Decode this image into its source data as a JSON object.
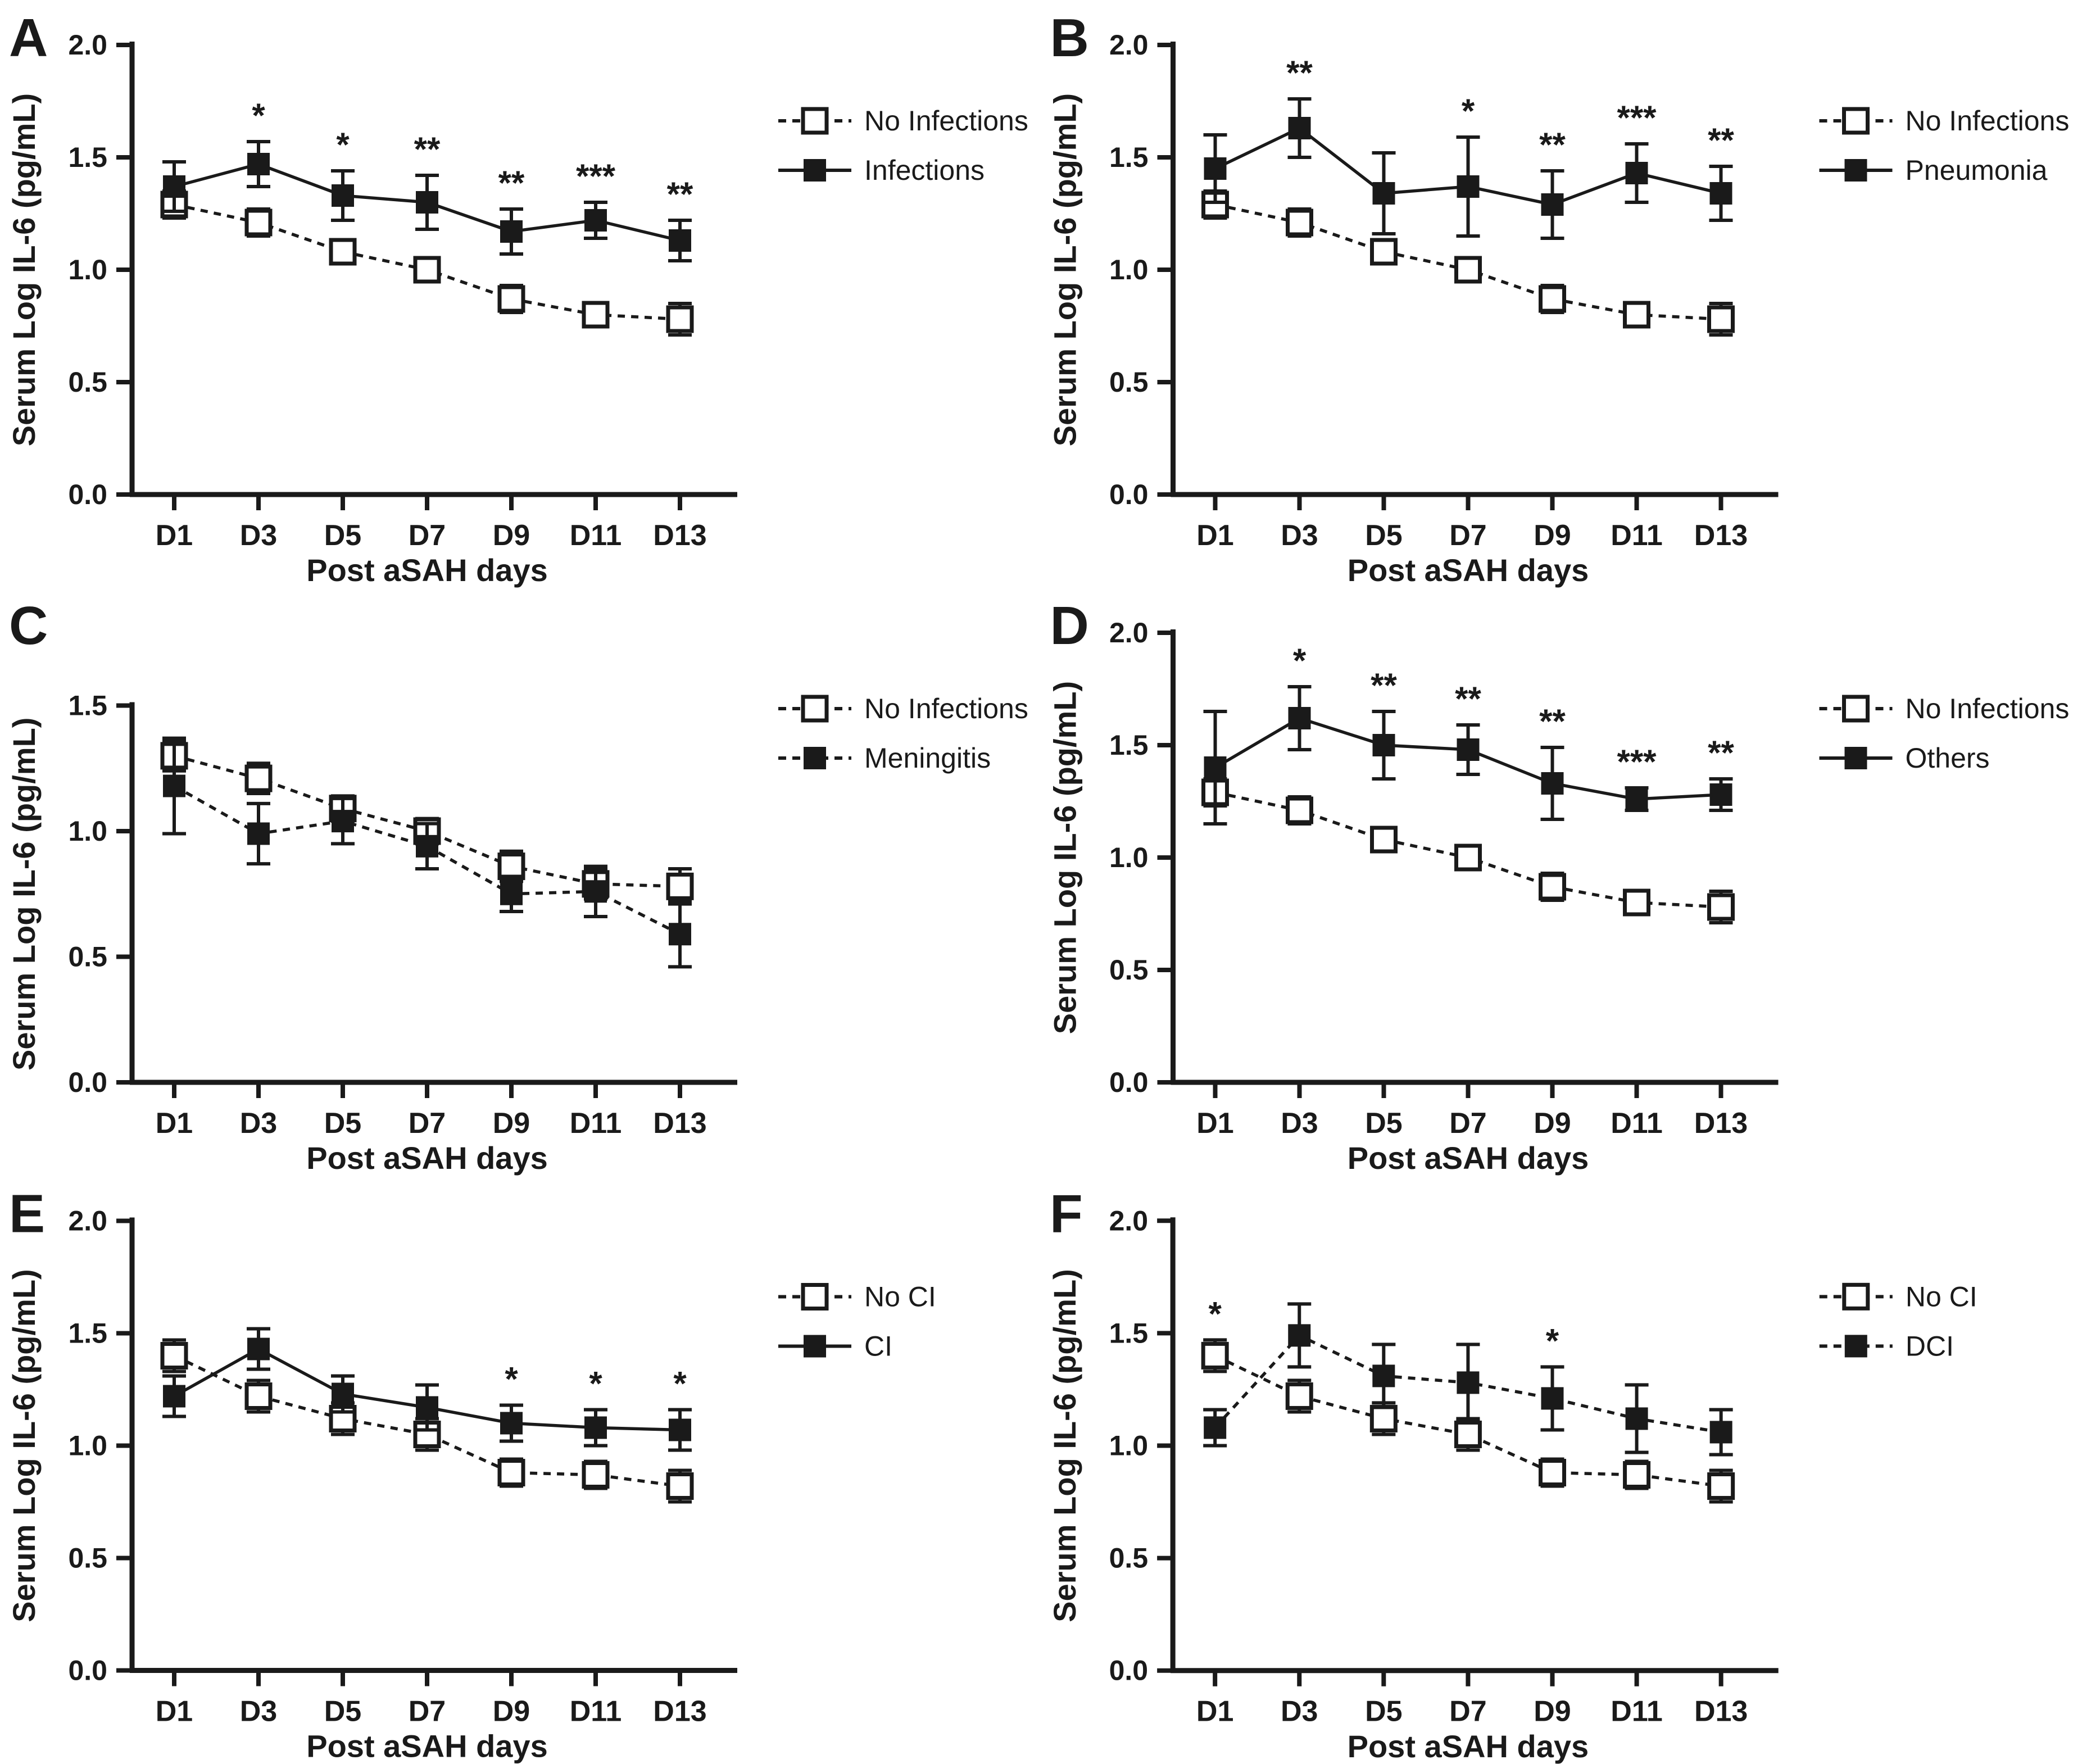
{
  "figure": {
    "background": "#ffffff",
    "ink_color": "#1a1a1a",
    "panel_letters": [
      "A",
      "B",
      "C",
      "D",
      "E",
      "F"
    ]
  },
  "chart_data": [
    {
      "panel": "A",
      "type": "line",
      "title": "",
      "xlabel": "Post aSAH days",
      "ylabel": "Serum Log IL-6 (pg/mL)",
      "categories": [
        "D1",
        "D3",
        "D5",
        "D7",
        "D9",
        "D11",
        "D13"
      ],
      "ylim": [
        0.0,
        2.0
      ],
      "yticks": [
        0.0,
        0.5,
        1.0,
        1.5,
        2.0
      ],
      "grid": false,
      "legend_position": "right",
      "series": [
        {
          "name": "No Infections",
          "marker": "open-square",
          "line": "dashed",
          "values": [
            1.29,
            1.21,
            1.08,
            1.0,
            0.87,
            0.8,
            0.78
          ],
          "errors": [
            0.06,
            0.06,
            0.05,
            0.05,
            0.06,
            0.05,
            0.07
          ]
        },
        {
          "name": "Infections",
          "marker": "filled-square",
          "line": "solid",
          "values": [
            1.37,
            1.47,
            1.33,
            1.3,
            1.17,
            1.22,
            1.13
          ],
          "errors": [
            0.11,
            0.1,
            0.11,
            0.12,
            0.1,
            0.08,
            0.09
          ]
        }
      ],
      "significance": [
        {
          "category": "D3",
          "series": "Infections",
          "label": "*"
        },
        {
          "category": "D5",
          "series": "Infections",
          "label": "*"
        },
        {
          "category": "D7",
          "series": "Infections",
          "label": "**"
        },
        {
          "category": "D9",
          "series": "Infections",
          "label": "**"
        },
        {
          "category": "D11",
          "series": "Infections",
          "label": "***"
        },
        {
          "category": "D13",
          "series": "Infections",
          "label": "**"
        }
      ]
    },
    {
      "panel": "B",
      "type": "line",
      "title": "",
      "xlabel": "Post aSAH days",
      "ylabel": "Serum Log IL-6 (pg/mL)",
      "categories": [
        "D1",
        "D3",
        "D5",
        "D7",
        "D9",
        "D11",
        "D13"
      ],
      "ylim": [
        0.0,
        2.0
      ],
      "yticks": [
        0.0,
        0.5,
        1.0,
        1.5,
        2.0
      ],
      "grid": false,
      "legend_position": "right",
      "series": [
        {
          "name": "No Infections",
          "marker": "open-square",
          "line": "dashed",
          "values": [
            1.29,
            1.21,
            1.08,
            1.0,
            0.87,
            0.8,
            0.78
          ],
          "errors": [
            0.06,
            0.06,
            0.05,
            0.05,
            0.06,
            0.05,
            0.07
          ]
        },
        {
          "name": "Pneumonia",
          "marker": "filled-square",
          "line": "solid",
          "values": [
            1.45,
            1.63,
            1.34,
            1.37,
            1.29,
            1.43,
            1.34
          ],
          "errors": [
            0.15,
            0.13,
            0.18,
            0.22,
            0.15,
            0.13,
            0.12
          ]
        }
      ],
      "significance": [
        {
          "category": "D3",
          "series": "Pneumonia",
          "label": "**"
        },
        {
          "category": "D7",
          "series": "Pneumonia",
          "label": "*"
        },
        {
          "category": "D9",
          "series": "Pneumonia",
          "label": "**"
        },
        {
          "category": "D11",
          "series": "Pneumonia",
          "label": "***"
        },
        {
          "category": "D13",
          "series": "Pneumonia",
          "label": "**"
        }
      ]
    },
    {
      "panel": "C",
      "type": "line",
      "title": "",
      "xlabel": "Post aSAH days",
      "ylabel": "Serum Log IL-6 (pg/mL)",
      "categories": [
        "D1",
        "D3",
        "D5",
        "D7",
        "D9",
        "D11",
        "D13"
      ],
      "ylim": [
        0.0,
        1.5
      ],
      "yticks": [
        0.0,
        0.5,
        1.0,
        1.5
      ],
      "grid": false,
      "legend_position": "right",
      "series": [
        {
          "name": "No Infections",
          "marker": "open-square",
          "line": "dashed",
          "values": [
            1.3,
            1.21,
            1.09,
            1.0,
            0.86,
            0.79,
            0.78
          ],
          "errors": [
            0.06,
            0.06,
            0.05,
            0.05,
            0.06,
            0.06,
            0.07
          ]
        },
        {
          "name": "Meningitis",
          "marker": "filled-square",
          "line": "dashed",
          "values": [
            1.18,
            0.99,
            1.04,
            0.94,
            0.75,
            0.76,
            0.59
          ],
          "errors": [
            0.19,
            0.12,
            0.09,
            0.09,
            0.07,
            0.1,
            0.13
          ]
        }
      ],
      "significance": []
    },
    {
      "panel": "D",
      "type": "line",
      "title": "",
      "xlabel": "Post aSAH days",
      "ylabel": "Serum Log IL-6 (pg/mL)",
      "categories": [
        "D1",
        "D3",
        "D5",
        "D7",
        "D9",
        "D11",
        "D13"
      ],
      "ylim": [
        0.0,
        2.0
      ],
      "yticks": [
        0.0,
        0.5,
        1.0,
        1.5,
        2.0
      ],
      "grid": false,
      "legend_position": "right",
      "series": [
        {
          "name": "No Infections",
          "marker": "open-square",
          "line": "dashed",
          "values": [
            1.29,
            1.21,
            1.08,
            1.0,
            0.87,
            0.8,
            0.78
          ],
          "errors": [
            0.06,
            0.06,
            0.05,
            0.05,
            0.06,
            0.05,
            0.07
          ]
        },
        {
          "name": "Others",
          "marker": "filled-square",
          "line": "solid",
          "values": [
            1.4,
            1.62,
            1.5,
            1.48,
            1.33,
            1.26,
            1.28
          ],
          "errors": [
            0.25,
            0.14,
            0.15,
            0.11,
            0.16,
            0.05,
            0.07
          ]
        }
      ],
      "significance": [
        {
          "category": "D3",
          "series": "Others",
          "label": "*"
        },
        {
          "category": "D5",
          "series": "Others",
          "label": "**"
        },
        {
          "category": "D7",
          "series": "Others",
          "label": "**"
        },
        {
          "category": "D9",
          "series": "Others",
          "label": "**"
        },
        {
          "category": "D11",
          "series": "Others",
          "label": "***"
        },
        {
          "category": "D13",
          "series": "Others",
          "label": "**"
        }
      ]
    },
    {
      "panel": "E",
      "type": "line",
      "title": "",
      "xlabel": "Post aSAH days",
      "ylabel": "Serum Log IL-6 (pg/mL)",
      "categories": [
        "D1",
        "D3",
        "D5",
        "D7",
        "D9",
        "D11",
        "D13"
      ],
      "ylim": [
        0.0,
        2.0
      ],
      "yticks": [
        0.0,
        0.5,
        1.0,
        1.5,
        2.0
      ],
      "grid": false,
      "legend_position": "right",
      "series": [
        {
          "name": "No CI",
          "marker": "open-square",
          "line": "dashed",
          "values": [
            1.4,
            1.22,
            1.12,
            1.05,
            0.88,
            0.87,
            0.82
          ],
          "errors": [
            0.07,
            0.07,
            0.07,
            0.07,
            0.06,
            0.06,
            0.07
          ]
        },
        {
          "name": "CI",
          "marker": "filled-square",
          "line": "solid",
          "values": [
            1.22,
            1.43,
            1.23,
            1.17,
            1.1,
            1.08,
            1.07
          ],
          "errors": [
            0.09,
            0.09,
            0.08,
            0.1,
            0.08,
            0.08,
            0.09
          ]
        }
      ],
      "significance": [
        {
          "category": "D9",
          "series": "CI",
          "label": "*"
        },
        {
          "category": "D11",
          "series": "CI",
          "label": "*"
        },
        {
          "category": "D13",
          "series": "CI",
          "label": "*"
        }
      ]
    },
    {
      "panel": "F",
      "type": "line",
      "title": "",
      "xlabel": "Post aSAH days",
      "ylabel": "Serum Log IL-6 (pg/mL)",
      "categories": [
        "D1",
        "D3",
        "D5",
        "D7",
        "D9",
        "D11",
        "D13"
      ],
      "ylim": [
        0.0,
        2.0
      ],
      "yticks": [
        0.0,
        0.5,
        1.0,
        1.5,
        2.0
      ],
      "grid": false,
      "legend_position": "right",
      "series": [
        {
          "name": "No CI",
          "marker": "open-square",
          "line": "dashed",
          "values": [
            1.4,
            1.22,
            1.12,
            1.05,
            0.88,
            0.87,
            0.82
          ],
          "errors": [
            0.07,
            0.07,
            0.07,
            0.07,
            0.06,
            0.06,
            0.07
          ]
        },
        {
          "name": "DCI",
          "marker": "filled-square",
          "line": "dashed",
          "values": [
            1.08,
            1.49,
            1.31,
            1.28,
            1.21,
            1.12,
            1.06
          ],
          "errors": [
            0.08,
            0.14,
            0.14,
            0.17,
            0.14,
            0.15,
            0.1
          ]
        }
      ],
      "significance": [
        {
          "category": "D1",
          "series": "No CI",
          "label": "*"
        },
        {
          "category": "D9",
          "series": "DCI",
          "label": "*"
        }
      ]
    }
  ]
}
